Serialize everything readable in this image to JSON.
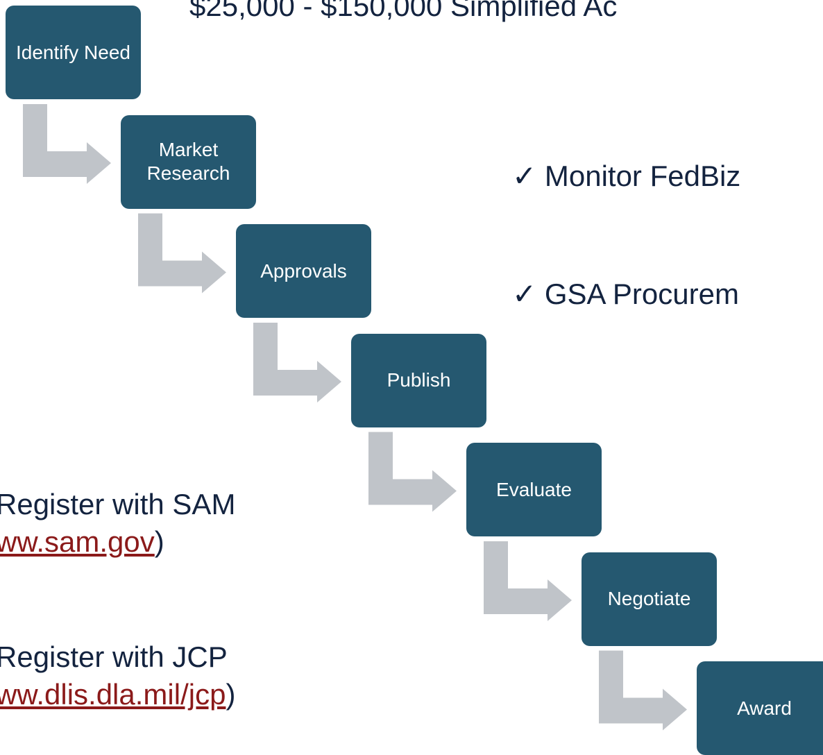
{
  "title": "$25,000 - $150,000 Simplified Ac",
  "steps": [
    {
      "label": "Identify Need"
    },
    {
      "label": "Market Research"
    },
    {
      "label": "Approvals"
    },
    {
      "label": "Publish"
    },
    {
      "label": "Evaluate"
    },
    {
      "label": "Negotiate"
    },
    {
      "label": "Award"
    }
  ],
  "right_bullets": [
    {
      "text": "✓ Monitor FedBiz"
    },
    {
      "text": "✓ GSA Procurem"
    }
  ],
  "left_bullets": [
    {
      "text": "Register with SAM",
      "link": "ww.sam.gov",
      "suffix": ")"
    },
    {
      "text": "Register with JCP",
      "link": "ww.dlis.dla.mil/jcp",
      "suffix": ")"
    }
  ]
}
